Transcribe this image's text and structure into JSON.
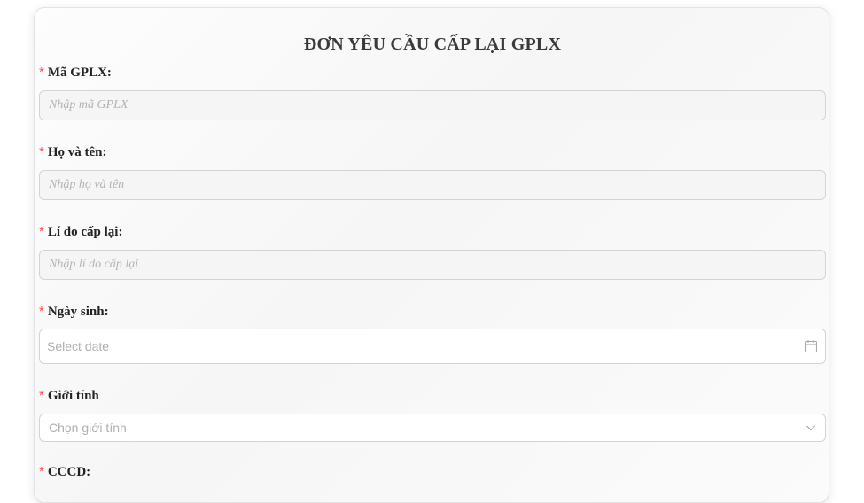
{
  "form": {
    "title": "ĐƠN YÊU CẦU CẤP LẠI GPLX",
    "required_mark": "*",
    "fields": {
      "license_code": {
        "label": "Mã GPLX:",
        "placeholder": "Nhập mã GPLX"
      },
      "full_name": {
        "label": "Họ và tên:",
        "placeholder": "Nhập họ và tên"
      },
      "reason": {
        "label": "Lí do cấp lại:",
        "placeholder": "Nhập lí do cấp lại"
      },
      "birth_date": {
        "label": "Ngày sinh:",
        "placeholder": "Select date",
        "icon": "calendar-icon"
      },
      "gender": {
        "label": "Giới tính",
        "placeholder": "Chọn giới tính",
        "icon": "chevron-down-icon"
      },
      "citizen_id": {
        "label": "CCCD:"
      }
    }
  },
  "colors": {
    "required": "#ff4d4f",
    "placeholder": "#b3b3b3",
    "border": "#d4d4d4"
  }
}
